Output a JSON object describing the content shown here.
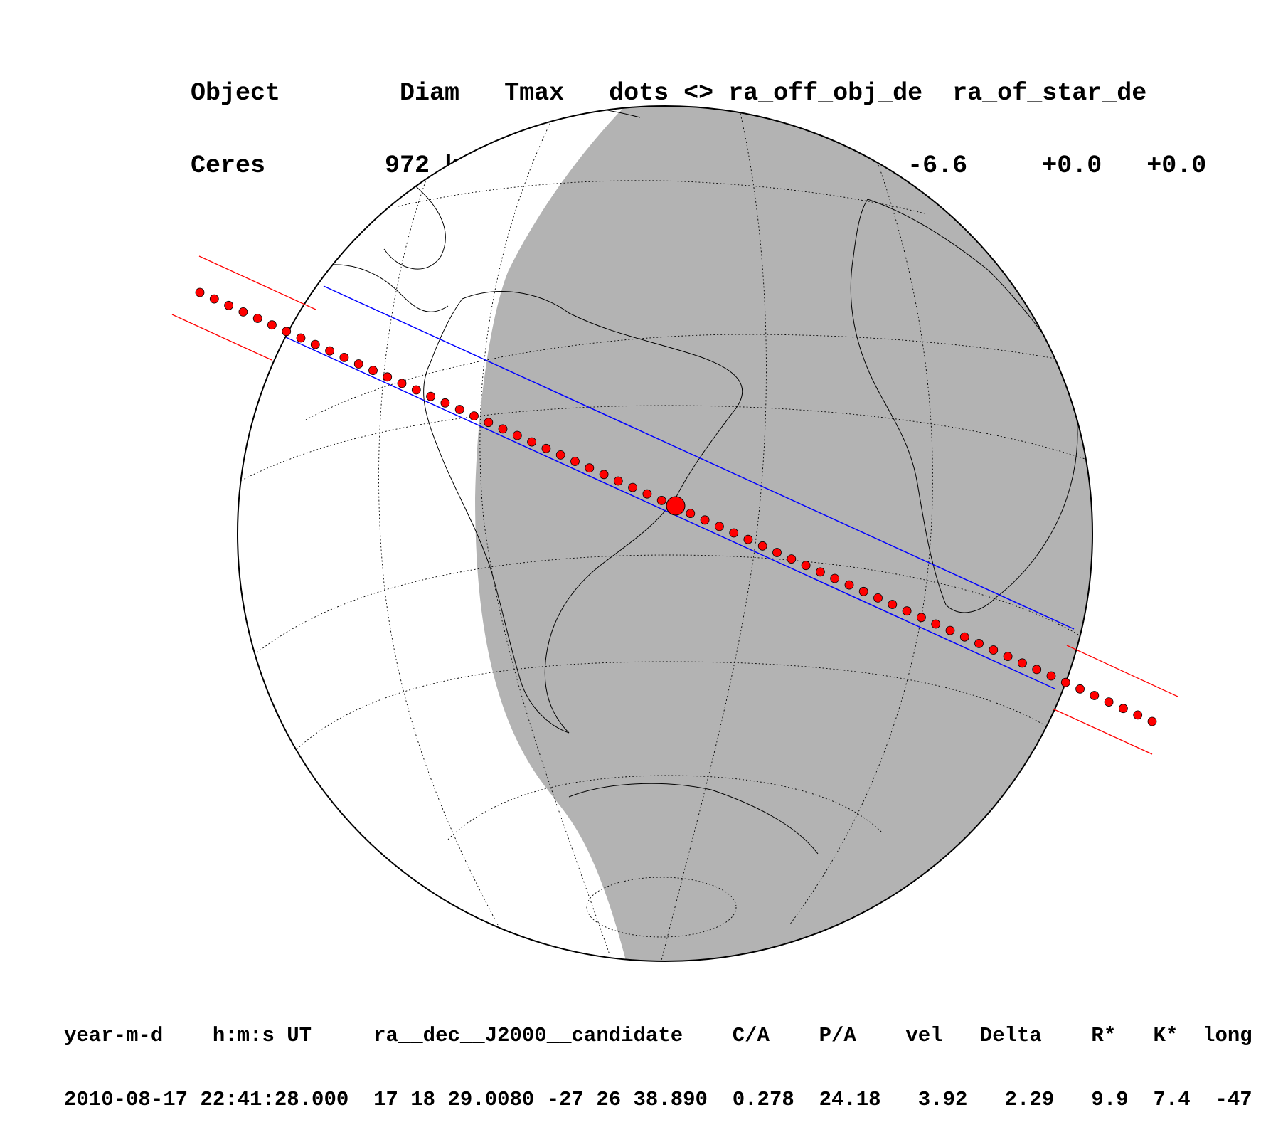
{
  "header": {
    "line1": "Object        Diam   Tmax   dots <> ra_off_obj_de  ra_of_star_de",
    "line2": "Ceres        972 km  248.0s   60 s <>  +83.0    -6.6     +0.0   +0.0"
  },
  "footer": {
    "line1": "year-m-d    h:m:s UT     ra__dec__J2000__candidate    C/A    P/A    vel   Delta    R*   K*  long",
    "line2": "2010-08-17 22:41:28.000  17 18 29.0080 -27 26 38.890  0.278  24.18   3.92   2.29   9.9  7.4  -47"
  },
  "colors": {
    "night_shade": "#b3b3b3",
    "limit_lines": "#0000ff",
    "outer_limits": "#ff0000",
    "dots": "#ff0000"
  }
}
